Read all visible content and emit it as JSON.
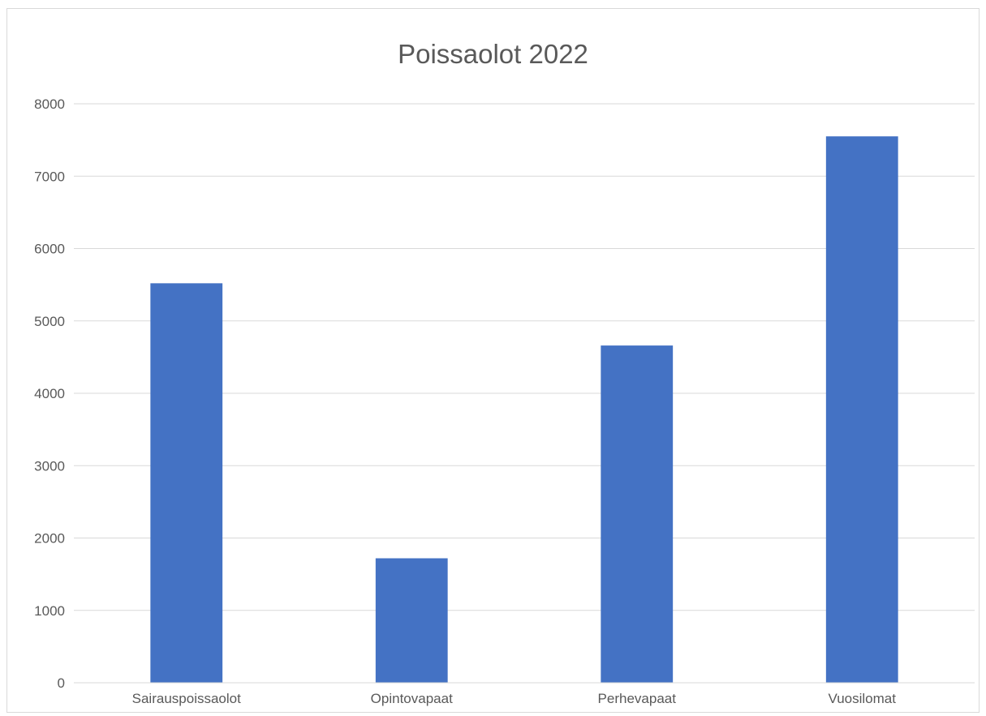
{
  "chart_data": {
    "type": "bar",
    "title": "Poissaolot 2022",
    "xlabel": "",
    "ylabel": "",
    "categories": [
      "Sairauspoissaolot",
      "Opintovapaat",
      "Perhevapaat",
      "Vuosilomat"
    ],
    "values": [
      5520,
      1720,
      4660,
      7550
    ],
    "ylim": [
      0,
      8000
    ],
    "yticks": [
      "0",
      "1000",
      "2000",
      "3000",
      "4000",
      "5000",
      "6000",
      "7000",
      "8000"
    ],
    "grid": true,
    "legend": "none",
    "bar_color": "#4472C4",
    "grid_color": "#d9d9d9"
  }
}
